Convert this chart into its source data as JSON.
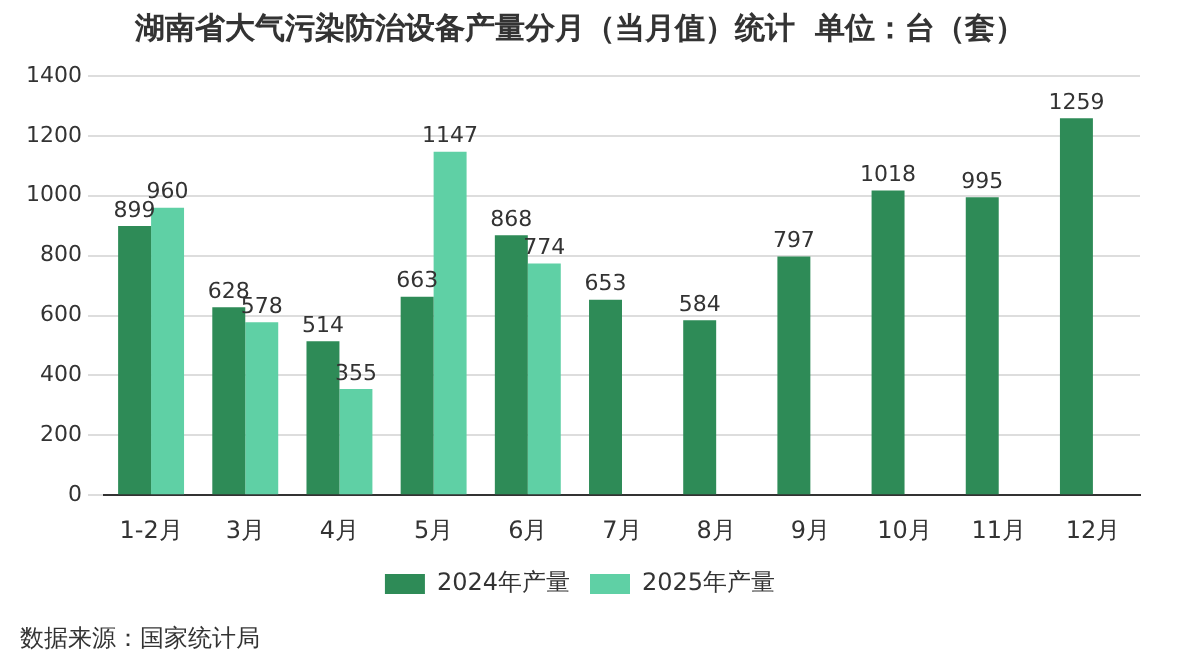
{
  "chart_data": {
    "type": "bar",
    "title": "湖南省大气污染防治设备产量分月（当月值）统计  单位：台（套）",
    "categories": [
      "1-2月",
      "3月",
      "4月",
      "5月",
      "6月",
      "7月",
      "8月",
      "9月",
      "10月",
      "11月",
      "12月"
    ],
    "series": [
      {
        "name": "2024年产量",
        "color": "#2e8b57",
        "values": [
          899,
          628,
          514,
          663,
          868,
          653,
          584,
          797,
          1018,
          995,
          1259
        ]
      },
      {
        "name": "2025年产量",
        "color": "#5fd0a5",
        "values": [
          960,
          578,
          355,
          1147,
          774,
          null,
          null,
          null,
          null,
          null,
          null
        ]
      }
    ],
    "ylim": [
      0,
      1400
    ],
    "yticks": [
      0,
      200,
      400,
      600,
      800,
      1000,
      1200,
      1400
    ],
    "grid": "y",
    "legend": "bottom",
    "data_labels": true,
    "annotations": [
      "数据来源：国家统计局"
    ]
  }
}
